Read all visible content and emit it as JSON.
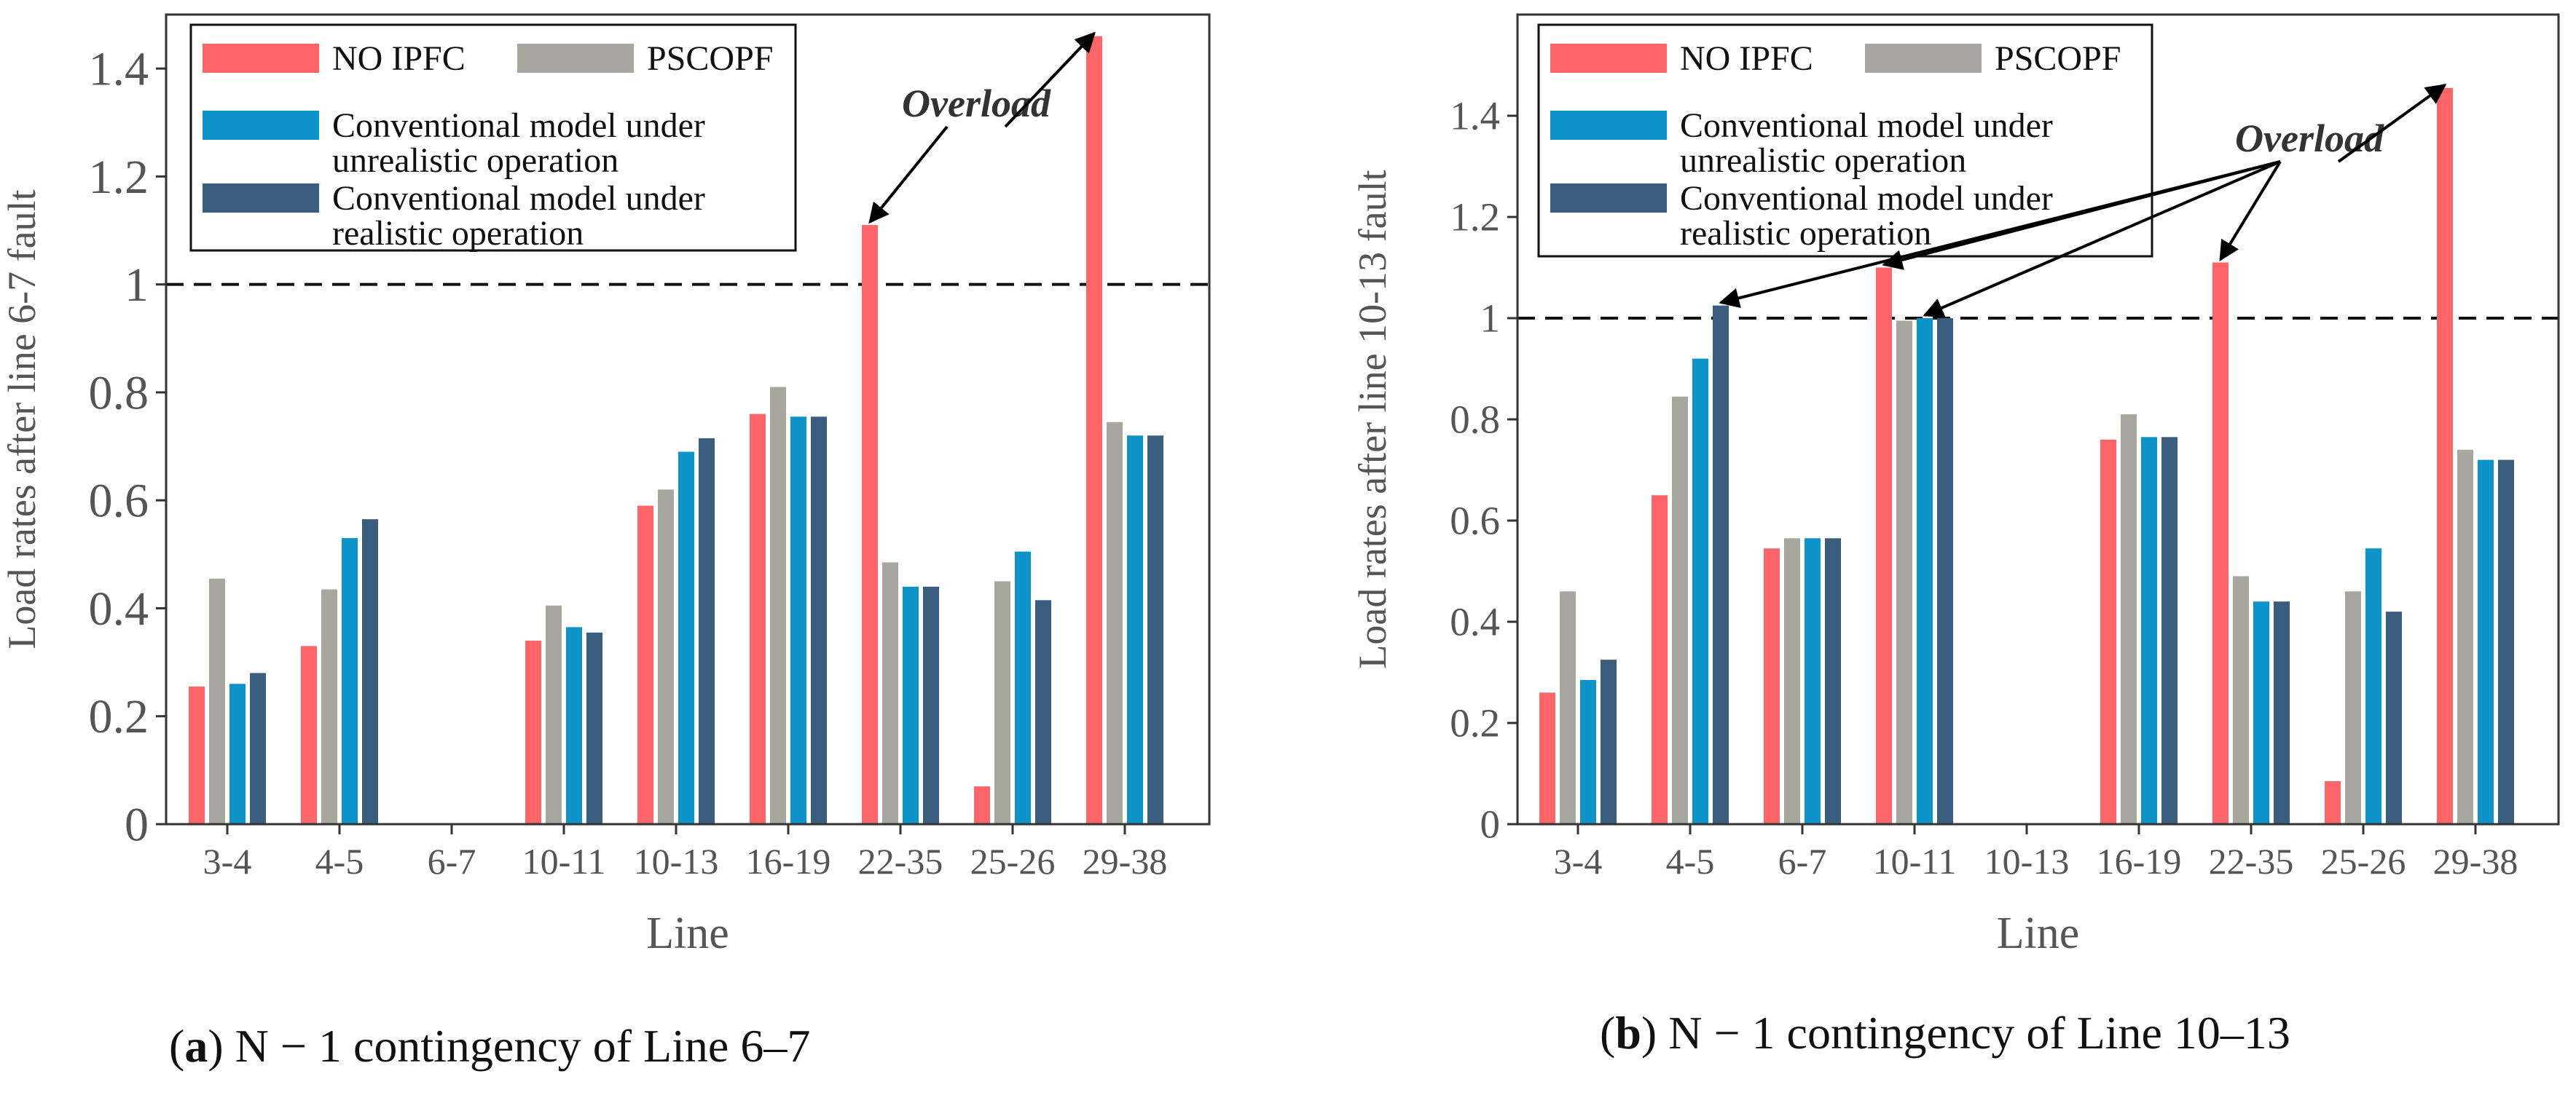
{
  "colors": {
    "no_ipfc": "#FF6469",
    "pscopf": "#A7A79E",
    "unrealistic": "#0C94C8",
    "realistic": "#3B5E7E",
    "axis": "#333333",
    "text": "#555555"
  },
  "overload_label": "Overload",
  "chart_data": [
    {
      "id": "a",
      "type": "bar",
      "title": "",
      "xlabel": "Line",
      "ylabel": "Load rates after line 6-7 fault",
      "ylim": [
        0,
        1.5
      ],
      "yticks": [
        0,
        0.2,
        0.4,
        0.6,
        0.8,
        1,
        1.2,
        1.4
      ],
      "ytick_labels": [
        "0",
        "0.2",
        "0.4",
        "0.6",
        "0.8",
        "1",
        "1.2",
        "1.4"
      ],
      "threshold": 1,
      "categories": [
        "3-4",
        "4-5",
        "6-7",
        "10-11",
        "10-13",
        "16-19",
        "22-35",
        "25-26",
        "29-38"
      ],
      "series": [
        {
          "name": "NO IPFC",
          "values": [
            0.255,
            0.33,
            null,
            0.34,
            0.59,
            0.76,
            1.11,
            0.07,
            1.46
          ]
        },
        {
          "name": "PSCOPF",
          "values": [
            0.455,
            0.435,
            null,
            0.405,
            0.62,
            0.81,
            0.485,
            0.45,
            0.745
          ]
        },
        {
          "name": "Conventional model under unrealistic operation",
          "values": [
            0.26,
            0.53,
            null,
            0.365,
            0.69,
            0.755,
            0.44,
            0.505,
            0.72
          ]
        },
        {
          "name": "Conventional model under realistic operation",
          "values": [
            0.28,
            0.565,
            null,
            0.355,
            0.715,
            0.755,
            0.44,
            0.415,
            0.72
          ]
        }
      ],
      "overload_targets": [
        [
          6,
          0
        ],
        [
          8,
          0
        ]
      ],
      "caption_letter": "(a)",
      "caption_text": " N − 1 contingency of Line 6–7"
    },
    {
      "id": "b",
      "type": "bar",
      "title": "",
      "xlabel": "Line",
      "ylabel": "Load rates after line 10-13 fault",
      "ylim": [
        0,
        1.6
      ],
      "yticks": [
        0,
        0.2,
        0.4,
        0.6,
        0.8,
        1,
        1.2,
        1.4
      ],
      "ytick_labels": [
        "0",
        "0.2",
        "0.4",
        "0.6",
        "0.8",
        "1",
        "1.2",
        "1.4"
      ],
      "threshold": 1,
      "categories": [
        "3-4",
        "4-5",
        "6-7",
        "10-11",
        "10-13",
        "16-19",
        "22-35",
        "25-26",
        "29-38"
      ],
      "series": [
        {
          "name": "NO IPFC",
          "values": [
            0.26,
            0.65,
            0.545,
            1.1,
            null,
            0.76,
            1.11,
            0.085,
            1.455
          ]
        },
        {
          "name": "PSCOPF",
          "values": [
            0.46,
            0.845,
            0.565,
            0.995,
            null,
            0.81,
            0.49,
            0.46,
            0.74
          ]
        },
        {
          "name": "Conventional model under unrealistic operation",
          "values": [
            0.285,
            0.92,
            0.565,
            1.0,
            null,
            0.765,
            0.44,
            0.545,
            0.72
          ]
        },
        {
          "name": "Conventional model under realistic operation",
          "values": [
            0.325,
            1.025,
            0.565,
            1.0,
            null,
            0.765,
            0.44,
            0.42,
            0.72
          ]
        }
      ],
      "overload_targets": [
        [
          1,
          3
        ],
        [
          3,
          0
        ],
        [
          3,
          2
        ],
        [
          6,
          0
        ],
        [
          8,
          0
        ]
      ],
      "caption_letter": "(b)",
      "caption_text": " N − 1 contingency of Line 10–13"
    }
  ],
  "legend": [
    {
      "label_lines": [
        "NO IPFC"
      ],
      "series": 0
    },
    {
      "label_lines": [
        "PSCOPF"
      ],
      "series": 1
    },
    {
      "label_lines": [
        "Conventional model under",
        "unrealistic operation"
      ],
      "series": 2
    },
    {
      "label_lines": [
        "Conventional model under",
        "realistic operation"
      ],
      "series": 3
    }
  ]
}
